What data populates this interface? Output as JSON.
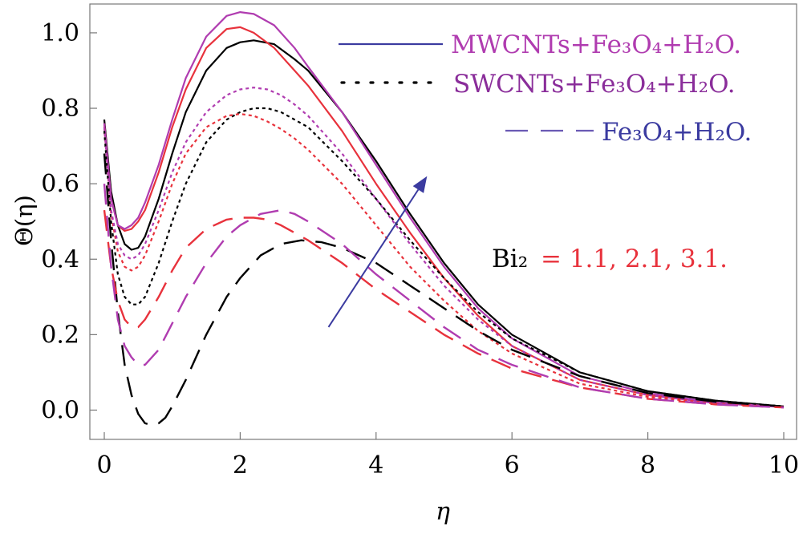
{
  "chart_data": {
    "type": "line",
    "title": "",
    "xlabel": "η",
    "ylabel": "Θ(η)",
    "xlim": [
      0,
      10
    ],
    "ylim": [
      -0.05,
      1.07
    ],
    "grid": false,
    "x_ticks": [
      0,
      2,
      4,
      6,
      8,
      10
    ],
    "x_tick_labels": [
      "0",
      "2",
      "4",
      "6",
      "8",
      "10"
    ],
    "y_ticks": [
      0.0,
      0.2,
      0.4,
      0.6,
      0.8,
      1.0
    ],
    "y_tick_labels": [
      "0.0",
      "0.2",
      "0.4",
      "0.6",
      "0.8",
      "1.0"
    ],
    "legend": {
      "position": "top-right",
      "entries": [
        {
          "label": "MWCNTs+Fe₃O₄+H₂O.",
          "style": "solid",
          "line_color": "#3b3ba0",
          "text_color": "#b03cb0"
        },
        {
          "label": "SWCNTs+Fe₃O₄+H₂O.",
          "style": "dotted",
          "line_color": "#000000",
          "text_color": "#8a2d9a"
        },
        {
          "label": "Fe₃O₄+H₂O.",
          "style": "dashed",
          "line_color": "#6a5ab4",
          "text_color": "#3b3ba0"
        }
      ]
    },
    "annotation": {
      "prefix": "Bi₂",
      "values_text": "= 1.1, 2.1, 3.1.",
      "prefix_color": "#000000",
      "values_color": "#e8323c",
      "arrow_from": [
        3.3,
        0.22
      ],
      "arrow_to": [
        4.75,
        0.62
      ],
      "arrow_color": "#3b3ba0"
    },
    "series": [
      {
        "name": "MWCNTs Bi2=1.1",
        "group": "MWCNTs+Fe3O4+H2O",
        "bi2": 1.1,
        "style": "solid",
        "color": "#000000",
        "x": [
          0,
          0.1,
          0.2,
          0.3,
          0.4,
          0.5,
          0.6,
          0.8,
          1.0,
          1.2,
          1.5,
          1.8,
          2.0,
          2.2,
          2.5,
          2.8,
          3.0,
          3.5,
          4.0,
          4.5,
          5.0,
          5.5,
          6.0,
          7.0,
          8.0,
          9.0,
          10.0
        ],
        "y": [
          0.77,
          0.58,
          0.49,
          0.44,
          0.425,
          0.43,
          0.46,
          0.56,
          0.68,
          0.79,
          0.9,
          0.96,
          0.975,
          0.98,
          0.97,
          0.93,
          0.9,
          0.79,
          0.66,
          0.52,
          0.39,
          0.28,
          0.2,
          0.1,
          0.05,
          0.025,
          0.01
        ]
      },
      {
        "name": "MWCNTs Bi2=2.1",
        "group": "MWCNTs+Fe3O4+H2O",
        "bi2": 2.1,
        "style": "solid",
        "color": "#e8323c",
        "x": [
          0,
          0.1,
          0.2,
          0.3,
          0.4,
          0.5,
          0.6,
          0.8,
          1.0,
          1.2,
          1.5,
          1.8,
          2.0,
          2.2,
          2.5,
          2.8,
          3.0,
          3.5,
          4.0,
          4.5,
          5.0,
          5.5,
          6.0,
          7.0,
          8.0,
          9.0,
          10.0
        ],
        "y": [
          0.76,
          0.56,
          0.49,
          0.475,
          0.48,
          0.5,
          0.53,
          0.63,
          0.75,
          0.85,
          0.96,
          1.01,
          1.015,
          1.0,
          0.96,
          0.9,
          0.86,
          0.74,
          0.6,
          0.47,
          0.35,
          0.25,
          0.17,
          0.08,
          0.04,
          0.02,
          0.008
        ]
      },
      {
        "name": "MWCNTs Bi2=3.1",
        "group": "MWCNTs+Fe3O4+H2O",
        "bi2": 3.1,
        "style": "solid",
        "color": "#b03cb0",
        "x": [
          0,
          0.1,
          0.2,
          0.3,
          0.4,
          0.5,
          0.6,
          0.8,
          1.0,
          1.2,
          1.5,
          1.8,
          2.0,
          2.2,
          2.5,
          2.8,
          3.0,
          3.5,
          4.0,
          4.5,
          5.0,
          5.5,
          6.0,
          7.0,
          8.0,
          9.0,
          10.0
        ],
        "y": [
          0.76,
          0.56,
          0.49,
          0.48,
          0.49,
          0.51,
          0.55,
          0.65,
          0.77,
          0.88,
          0.99,
          1.045,
          1.055,
          1.05,
          1.02,
          0.96,
          0.91,
          0.79,
          0.65,
          0.51,
          0.38,
          0.27,
          0.19,
          0.09,
          0.045,
          0.02,
          0.008
        ]
      },
      {
        "name": "SWCNTs Bi2=1.1",
        "group": "SWCNTs+Fe3O4+H2O",
        "bi2": 1.1,
        "style": "dotted",
        "color": "#000000",
        "x": [
          0,
          0.1,
          0.2,
          0.3,
          0.4,
          0.5,
          0.6,
          0.8,
          1.0,
          1.2,
          1.5,
          1.8,
          2.0,
          2.2,
          2.4,
          2.6,
          2.8,
          3.0,
          3.5,
          4.0,
          4.5,
          5.0,
          5.5,
          6.0,
          7.0,
          8.0,
          9.0,
          10.0
        ],
        "y": [
          0.74,
          0.5,
          0.36,
          0.3,
          0.28,
          0.28,
          0.3,
          0.39,
          0.5,
          0.6,
          0.71,
          0.77,
          0.79,
          0.8,
          0.8,
          0.79,
          0.77,
          0.75,
          0.66,
          0.56,
          0.45,
          0.35,
          0.26,
          0.19,
          0.1,
          0.05,
          0.025,
          0.01
        ]
      },
      {
        "name": "SWCNTs Bi2=2.1",
        "group": "SWCNTs+Fe3O4+H2O",
        "bi2": 2.1,
        "style": "dotted",
        "color": "#e8323c",
        "x": [
          0,
          0.1,
          0.2,
          0.3,
          0.4,
          0.5,
          0.6,
          0.8,
          1.0,
          1.2,
          1.5,
          1.8,
          2.0,
          2.2,
          2.4,
          2.6,
          2.8,
          3.0,
          3.5,
          4.0,
          4.5,
          5.0,
          5.5,
          6.0,
          7.0,
          8.0,
          9.0,
          10.0
        ],
        "y": [
          0.75,
          0.52,
          0.42,
          0.38,
          0.37,
          0.38,
          0.41,
          0.5,
          0.6,
          0.68,
          0.75,
          0.78,
          0.785,
          0.78,
          0.765,
          0.745,
          0.72,
          0.69,
          0.6,
          0.49,
          0.38,
          0.29,
          0.21,
          0.15,
          0.07,
          0.035,
          0.017,
          0.008
        ]
      },
      {
        "name": "SWCNTs Bi2=3.1",
        "group": "SWCNTs+Fe3O4+H2O",
        "bi2": 3.1,
        "style": "dotted",
        "color": "#b03cb0",
        "x": [
          0,
          0.1,
          0.2,
          0.3,
          0.4,
          0.5,
          0.6,
          0.8,
          1.0,
          1.2,
          1.5,
          1.8,
          2.0,
          2.2,
          2.4,
          2.6,
          2.8,
          3.0,
          3.5,
          4.0,
          4.5,
          5.0,
          5.5,
          6.0,
          7.0,
          8.0,
          9.0,
          10.0
        ],
        "y": [
          0.75,
          0.53,
          0.44,
          0.41,
          0.4,
          0.41,
          0.44,
          0.53,
          0.63,
          0.71,
          0.79,
          0.835,
          0.85,
          0.855,
          0.85,
          0.835,
          0.81,
          0.78,
          0.68,
          0.56,
          0.44,
          0.33,
          0.24,
          0.17,
          0.08,
          0.04,
          0.018,
          0.008
        ]
      },
      {
        "name": "Fe3O4 Bi2=1.1",
        "group": "Fe3O4+H2O",
        "bi2": 1.1,
        "style": "dashed",
        "color": "#000000",
        "x": [
          0,
          0.1,
          0.2,
          0.3,
          0.4,
          0.5,
          0.6,
          0.7,
          0.8,
          0.9,
          1.0,
          1.2,
          1.5,
          1.8,
          2.0,
          2.3,
          2.6,
          2.9,
          3.2,
          3.5,
          4.0,
          4.5,
          5.0,
          5.5,
          6.0,
          7.0,
          8.0,
          9.0,
          10.0
        ],
        "y": [
          0.68,
          0.45,
          0.26,
          0.12,
          0.04,
          -0.01,
          -0.035,
          -0.04,
          -0.035,
          -0.02,
          0.01,
          0.08,
          0.2,
          0.3,
          0.35,
          0.41,
          0.44,
          0.45,
          0.445,
          0.43,
          0.39,
          0.33,
          0.27,
          0.21,
          0.16,
          0.09,
          0.045,
          0.022,
          0.01
        ]
      },
      {
        "name": "Fe3O4 Bi2=2.1",
        "group": "Fe3O4+H2O",
        "bi2": 2.1,
        "style": "dashed",
        "color": "#e8323c",
        "x": [
          0,
          0.1,
          0.2,
          0.3,
          0.4,
          0.5,
          0.6,
          0.8,
          1.0,
          1.2,
          1.5,
          1.8,
          2.0,
          2.2,
          2.4,
          2.6,
          2.8,
          3.0,
          3.5,
          4.0,
          4.5,
          5.0,
          5.5,
          6.0,
          7.0,
          8.0,
          9.0,
          10.0
        ],
        "y": [
          0.53,
          0.38,
          0.29,
          0.24,
          0.22,
          0.22,
          0.24,
          0.3,
          0.37,
          0.43,
          0.48,
          0.505,
          0.51,
          0.51,
          0.505,
          0.49,
          0.47,
          0.45,
          0.39,
          0.32,
          0.26,
          0.2,
          0.15,
          0.11,
          0.06,
          0.03,
          0.015,
          0.007
        ]
      },
      {
        "name": "Fe3O4 Bi2=3.1",
        "group": "Fe3O4+H2O",
        "bi2": 3.1,
        "style": "dashed",
        "color": "#b03cb0",
        "x": [
          0,
          0.1,
          0.2,
          0.3,
          0.4,
          0.5,
          0.6,
          0.8,
          1.0,
          1.2,
          1.5,
          1.8,
          2.0,
          2.3,
          2.6,
          2.8,
          3.0,
          3.5,
          4.0,
          4.5,
          5.0,
          5.5,
          6.0,
          7.0,
          8.0,
          9.0,
          10.0
        ],
        "y": [
          0.6,
          0.38,
          0.24,
          0.17,
          0.14,
          0.12,
          0.12,
          0.16,
          0.23,
          0.3,
          0.39,
          0.46,
          0.49,
          0.52,
          0.53,
          0.52,
          0.5,
          0.44,
          0.36,
          0.29,
          0.22,
          0.16,
          0.12,
          0.06,
          0.03,
          0.015,
          0.007
        ]
      }
    ]
  }
}
